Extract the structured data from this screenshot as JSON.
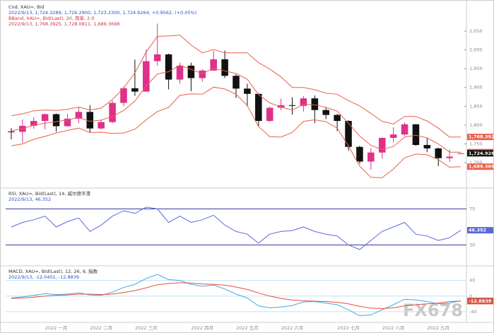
{
  "watermark": "FX678",
  "chart_data": [
    {
      "type": "candlestick",
      "title": "Cnd, XAU=, Bid",
      "subtitle": "2022/9/13, 1,724.3289, 1,726.2900, 1,723.2300, 1,724.9264, +0.9562, (+0.05%)",
      "categories": [
        null,
        null,
        null,
        null,
        "2022 一月",
        null,
        null,
        null,
        "2022 二月",
        null,
        null,
        null,
        "2022 三月",
        null,
        null,
        null,
        null,
        "2022 四月",
        null,
        null,
        null,
        "2022 五月",
        null,
        null,
        null,
        "2022 六月",
        null,
        null,
        null,
        null,
        "2022 七月",
        null,
        null,
        null,
        "2022 八月",
        null,
        null,
        null,
        "2022 九月",
        null,
        null
      ],
      "open": [
        1783,
        1782,
        1798,
        1811,
        1829,
        1797,
        1817,
        1835,
        1791,
        1808,
        1859,
        1898,
        1889,
        1970,
        1988,
        1921,
        1958,
        1925,
        1945,
        1975,
        1931,
        1897,
        1883,
        1811,
        1846,
        1853,
        1851,
        1871,
        1840,
        1827,
        1811,
        1742,
        1703,
        1727,
        1766,
        1775,
        1802,
        1747,
        1738,
        1712,
        1724.3289
      ],
      "high": [
        1792,
        1815,
        1821,
        1831,
        1831,
        1830,
        1848,
        1853,
        1815,
        1865,
        1902,
        1974,
        2001,
        2070,
        1990,
        1966,
        1966,
        1949,
        1998,
        1998,
        1935,
        1910,
        1884,
        1849,
        1870,
        1874,
        1877,
        1879,
        1847,
        1830,
        1813,
        1745,
        1739,
        1767,
        1794,
        1807,
        1803,
        1765,
        1740,
        1735,
        1726.29
      ],
      "low": [
        1762,
        1753,
        1790,
        1789,
        1782,
        1796,
        1805,
        1780,
        1788,
        1805,
        1850,
        1878,
        1889,
        1958,
        1895,
        1910,
        1890,
        1915,
        1945,
        1925,
        1872,
        1850,
        1797,
        1808,
        1840,
        1828,
        1836,
        1805,
        1816,
        1784,
        1732,
        1697,
        1681,
        1711,
        1754,
        1771,
        1745,
        1728,
        1691,
        1702,
        1723.23
      ],
      "close": [
        1782,
        1798,
        1811,
        1829,
        1797,
        1817,
        1835,
        1791,
        1808,
        1859,
        1898,
        1889,
        1970,
        1988,
        1921,
        1958,
        1925,
        1945,
        1975,
        1931,
        1897,
        1883,
        1811,
        1846,
        1853,
        1851,
        1871,
        1840,
        1827,
        1811,
        1742,
        1703,
        1727,
        1766,
        1775,
        1802,
        1747,
        1738,
        1712,
        1716,
        1724.9264
      ],
      "close_label": "1,724.9264",
      "up_color": "#e0308a",
      "down_color": "#111111",
      "overlay": {
        "title": "BBand, XAU=, Bid(Last), 20, 简单, 2.0",
        "subtitle": "2022/9/13, 1,768.3925, 1,728.0811, 1,689.3698",
        "series": [
          {
            "color": "#e8604c",
            "last_label": "1,768.3925",
            "values": [
              1825,
              1830,
              1838,
              1840,
              1839,
              1842,
              1848,
              1840,
              1845,
              1868,
              1899,
              1939,
              1994,
              2036,
              2037,
              2039,
              2013,
              1992,
              2001,
              1992,
              1992,
              1992,
              1966,
              1949,
              1928,
              1900,
              1900,
              1894,
              1885,
              1882,
              1865,
              1851,
              1831,
              1810,
              1803,
              1823,
              1823,
              1811,
              1792,
              1768,
              1768.3925
            ]
          },
          {
            "color": "#e8604c",
            "last_label": "1,728.0811",
            "values": [
              1785,
              1790,
              1800,
              1805,
              1809,
              1814,
              1820,
              1810,
              1813,
              1823,
              1839,
              1864,
              1904,
              1936,
              1942,
              1959,
              1948,
              1937,
              1951,
              1944,
              1937,
              1922,
              1881,
              1859,
              1848,
              1840,
              1855,
              1854,
              1847,
              1837,
              1805,
              1771,
              1746,
              1735,
              1743,
              1768,
              1773,
              1766,
              1750,
              1728,
              1728.0811
            ]
          },
          {
            "color": "#e8604c",
            "last_label": "1,689.3698",
            "values": [
              1745,
              1750,
              1762,
              1770,
              1779,
              1786,
              1792,
              1780,
              1781,
              1778,
              1779,
              1789,
              1814,
              1836,
              1847,
              1879,
              1883,
              1882,
              1901,
              1896,
              1882,
              1852,
              1796,
              1769,
              1768,
              1780,
              1810,
              1814,
              1809,
              1792,
              1745,
              1691,
              1661,
              1660,
              1683,
              1713,
              1723,
              1721,
              1708,
              1688,
              1689.3698
            ]
          }
        ]
      },
      "ylim": [
        1640,
        2080
      ],
      "grid": false,
      "grid_color": "#eeeeee",
      "yticks": [
        {
          "value": 1700,
          "label": "1,700"
        },
        {
          "value": 1750,
          "label": "1,750"
        },
        {
          "value": 1800,
          "label": "1,800"
        },
        {
          "value": 1850,
          "label": "1,850"
        },
        {
          "value": 1900,
          "label": "1,900"
        },
        {
          "value": 1950,
          "label": "1,950"
        },
        {
          "value": 2000,
          "label": "2,000"
        },
        {
          "value": 2050,
          "label": "2,050"
        }
      ]
    },
    {
      "type": "line",
      "title": "RSI, XAU=, Bid(Last), 14, 威尔德平滑",
      "subtitle": "2022/9/13, 46.352",
      "series": [
        {
          "color": "#5a68d8",
          "last_label": "46.352",
          "values": [
            50,
            55,
            58,
            62,
            50,
            56,
            60,
            45,
            52,
            62,
            68,
            65,
            72,
            70,
            55,
            62,
            55,
            58,
            63,
            52,
            45,
            42,
            32,
            42,
            45,
            46,
            50,
            45,
            42,
            40,
            30,
            25,
            35,
            45,
            50,
            55,
            42,
            40,
            35,
            38,
            46.352
          ]
        }
      ],
      "ylim": [
        10,
        90
      ],
      "yticks": [
        30,
        70
      ],
      "grid": true,
      "grid_color": "#3a3aa0"
    },
    {
      "type": "line",
      "title": "MACD, XAU=, Bid(Last), 12, 26, 9, 指数",
      "subtitle": "2022/9/13, -12.0401, -12.8839",
      "series": [
        {
          "color": "#46a8e6",
          "last_label": "-12.0401",
          "values": [
            -5,
            -2,
            2,
            6,
            4,
            5,
            8,
            3,
            2,
            10,
            22,
            30,
            45,
            55,
            42,
            40,
            30,
            25,
            28,
            18,
            5,
            -5,
            -25,
            -30,
            -28,
            -24,
            -15,
            -14,
            -18,
            -22,
            -35,
            -50,
            -48,
            -35,
            -22,
            -8,
            -10,
            -14,
            -20,
            -18,
            -12.0401
          ]
        },
        {
          "color": "#e0503e",
          "last_label": "-12.8839",
          "values": [
            -6,
            -5,
            -3,
            0,
            2,
            3,
            5,
            5,
            4,
            5,
            9,
            14,
            21,
            29,
            32,
            34,
            33,
            31,
            30,
            28,
            23,
            17,
            8,
            0,
            -6,
            -10,
            -12,
            -13,
            -14,
            -16,
            -20,
            -26,
            -31,
            -32,
            -30,
            -25,
            -22,
            -20,
            -18,
            -14,
            -12.8839
          ]
        }
      ],
      "ylim": [
        -60,
        70
      ],
      "yticks": [
        -40,
        0,
        40
      ],
      "grid": true,
      "grid_color": "#bfe3f5"
    }
  ]
}
